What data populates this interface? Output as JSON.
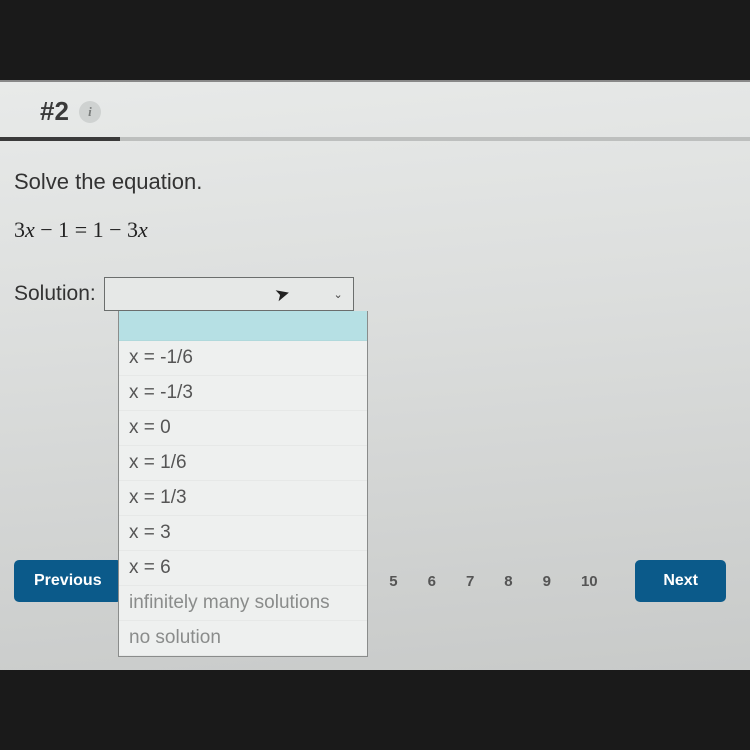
{
  "header": {
    "question_number": "#2",
    "info_icon_glyph": "i",
    "progress_percent": 16
  },
  "question": {
    "prompt": "Solve the equation.",
    "equation_lhs_coef": "3",
    "equation_lhs_var": "x",
    "equation_lhs_op": " − 1",
    "equation_eq": " = ",
    "equation_rhs_const": "1 − ",
    "equation_rhs_coef": "3",
    "equation_rhs_var": "x",
    "solution_label": "Solution:"
  },
  "dropdown": {
    "blank_selected": true,
    "options": [
      "x = -1/6",
      "x = -1/3",
      "x = 0",
      "x = 1/6",
      "x = 1/3",
      "x = 3",
      "x = 6",
      "infinitely many solutions",
      "no solution"
    ]
  },
  "nav": {
    "previous_label": "Previous",
    "next_label": "Next",
    "visible_pages": [
      "5",
      "6",
      "7",
      "8",
      "9",
      "10"
    ]
  },
  "colors": {
    "button_bg": "#0b5a8a",
    "highlight_bg": "#b6e0e4",
    "screen_bg_top": "#e8eae9",
    "screen_bg_bottom": "#c8cac9",
    "progress_fill": "#3a3a3a"
  }
}
